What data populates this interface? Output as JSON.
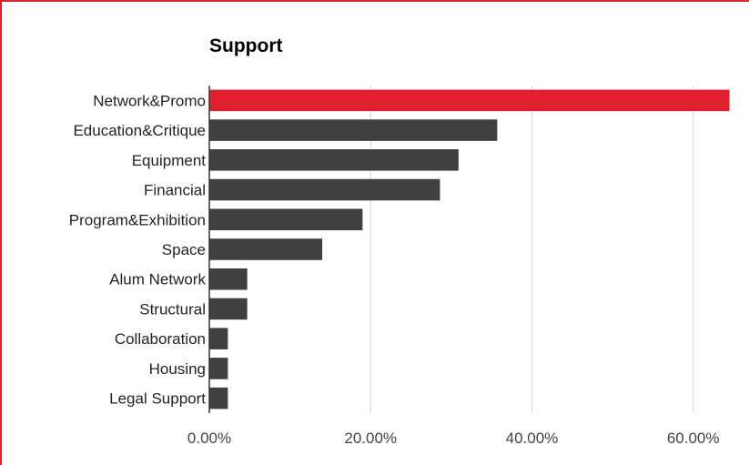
{
  "chart_data": {
    "type": "bar",
    "orientation": "horizontal",
    "title": "Support",
    "xlabel": "",
    "ylabel": "",
    "categories": [
      "Network&Promo",
      "Education&Critique",
      "Equipment",
      "Financial",
      "Program&Exhibition",
      "Space",
      "Alum Network",
      "Structural",
      "Collaboration",
      "Housing",
      "Legal Support"
    ],
    "values": [
      64.5,
      35.7,
      30.9,
      28.6,
      19.0,
      14.0,
      4.7,
      4.7,
      2.3,
      2.3,
      2.3
    ],
    "value_unit": "%",
    "xlim": [
      0,
      65
    ],
    "xticks": [
      0,
      20,
      40,
      60
    ],
    "xtick_labels": [
      "0.00%",
      "20.00%",
      "40.00%",
      "60.00%"
    ],
    "grid": "vertical",
    "legend": "none",
    "colors": {
      "highlight": "#e01f2f",
      "bar": "#404040",
      "grid": "#d6d6d6",
      "axis": "#333333",
      "frame": "#d9232f"
    },
    "highlight_index": 0
  }
}
